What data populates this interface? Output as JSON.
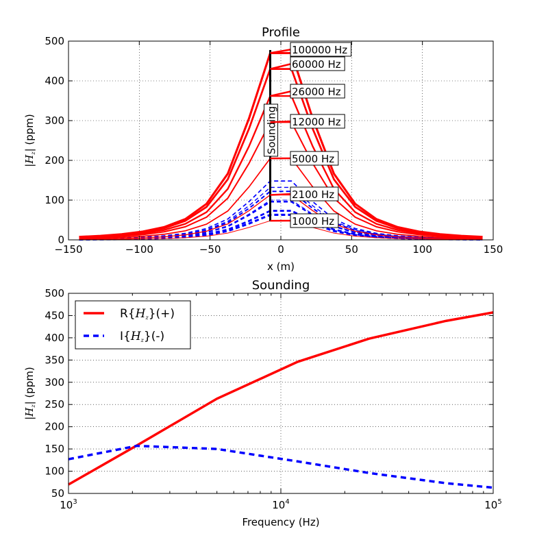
{
  "chart_data": [
    {
      "type": "line",
      "title": "Profile",
      "xlabel": "x (m)",
      "ylabel_prefix": "|",
      "ylabel_math": "H",
      "ylabel_sub": "z",
      "ylabel_suffix": "| (ppm)",
      "xlim": [
        -150,
        150
      ],
      "ylim": [
        0,
        500
      ],
      "xticks": [
        -150,
        -100,
        -50,
        0,
        50,
        100,
        150
      ],
      "xtick_labels": [
        "−150",
        "−100",
        "−50",
        "0",
        "50",
        "100",
        "150"
      ],
      "yticks": [
        0,
        100,
        200,
        300,
        400,
        500
      ],
      "ytick_labels": [
        "0",
        "100",
        "200",
        "300",
        "400",
        "500"
      ],
      "grid": true,
      "sounding_x": -7.5,
      "sounding_label": "Sounding",
      "stations": [
        -142.5,
        -127.5,
        -112.5,
        -97.5,
        -82.5,
        -67.5,
        -52.5,
        -37.5,
        -22.5,
        -7.5,
        7.5,
        22.5,
        37.5,
        52.5,
        67.5,
        82.5,
        97.5,
        112.5,
        127.5,
        142.5
      ],
      "frequencies": [
        1000,
        2100,
        5000,
        12000,
        26000,
        60000,
        100000
      ],
      "frequency_labels": [
        "1000 Hz",
        "2100 Hz",
        "5000 Hz",
        "12000 Hz",
        "26000 Hz",
        "60000 Hz",
        "100000 Hz"
      ],
      "peak_real": [
        48,
        113,
        205,
        296,
        362,
        430,
        470
      ],
      "peak_imag": [
        100,
        132,
        148,
        122,
        96,
        73,
        63
      ],
      "colors": {
        "real": "#ff0000",
        "imag": "#0000ff"
      }
    },
    {
      "type": "line",
      "title": "Sounding",
      "xlabel": "Frequency (Hz)",
      "ylabel_prefix": "|",
      "ylabel_math": "H",
      "ylabel_sub": "z",
      "ylabel_suffix": "| (ppm)",
      "xscale": "log",
      "xlim": [
        1000,
        100000
      ],
      "ylim": [
        50,
        500
      ],
      "xticks": [
        1000,
        10000,
        100000
      ],
      "xtick_labels": [
        {
          "base": "10",
          "exp": "3"
        },
        {
          "base": "10",
          "exp": "4"
        },
        {
          "base": "10",
          "exp": "5"
        }
      ],
      "yticks": [
        50,
        100,
        150,
        200,
        250,
        300,
        350,
        400,
        450,
        500
      ],
      "ytick_labels": [
        "50",
        "100",
        "150",
        "200",
        "250",
        "300",
        "350",
        "400",
        "450",
        "500"
      ],
      "grid": true,
      "legend_position": "top-left",
      "x": [
        1000,
        2100,
        5000,
        12000,
        26000,
        60000,
        100000
      ],
      "series": [
        {
          "name": "R{Hz}(+)",
          "legend_prefix": "R{",
          "legend_math": "H",
          "legend_sub": "z",
          "legend_suffix": "}(+)",
          "style": "solid",
          "color": "#ff0000",
          "values": [
            70,
            158,
            263,
            346,
            398,
            438,
            457
          ]
        },
        {
          "name": "I{Hz}(-)",
          "legend_prefix": "I{",
          "legend_math": "H",
          "legend_sub": "z",
          "legend_suffix": "}(-)",
          "style": "dashed",
          "color": "#0000ff",
          "values": [
            127,
            157,
            150,
            122,
            96,
            73,
            63
          ]
        }
      ]
    }
  ]
}
